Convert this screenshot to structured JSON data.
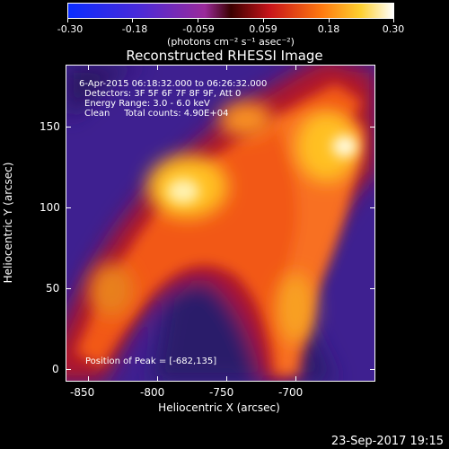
{
  "colorbar": {
    "tick_labels": [
      "-0.30",
      "-0.18",
      "-0.059",
      "0.059",
      "0.18",
      "0.30"
    ],
    "units": "(photons cm⁻² s⁻¹ asec⁻²)"
  },
  "title": "Reconstructed RHESSI Image",
  "annotations": {
    "line1": "6-Apr-2015 06:18:32.000 to 06:26:32.000",
    "line2": "Detectors: 3F 5F 6F 7F 8F 9F, Att 0",
    "line3": "Energy Range: 3.0 - 6.0 keV",
    "line4": "Clean     Total counts: 4.90E+04",
    "peak": "Position of Peak = [-682,135]"
  },
  "axes": {
    "xlabel": "Heliocentric X (arcsec)",
    "ylabel": "Heliocentric Y (arcsec)",
    "xticks": [
      "-850",
      "-800",
      "-750",
      "-700"
    ],
    "yticks": [
      "0",
      "50",
      "100",
      "150"
    ]
  },
  "footer": {
    "date": "23-Sep-2017 19:15"
  },
  "colors": {
    "background": "#000000",
    "map_low": "#3a1f8c",
    "map_mid": "#d4242a",
    "map_high": "#ffffe0"
  }
}
